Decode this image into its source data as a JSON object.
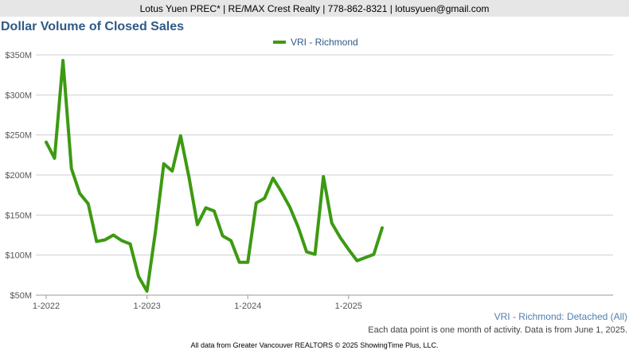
{
  "header": {
    "text": "Lotus Yuen PREC* | RE/MAX Crest Realty | 778-862-8321 | lotusyuen@gmail.com"
  },
  "chart_data": {
    "type": "line",
    "title": "Dollar Volume of Closed Sales",
    "subtitle": "VRI - Richmond: Detached (All)",
    "note": "Each data point is one month of activity. Data is from June 1, 2025.",
    "legend_position": "top-center",
    "grid": true,
    "ylim": [
      50,
      350
    ],
    "y_ticks": [
      50,
      100,
      150,
      200,
      250,
      300,
      350
    ],
    "y_tick_labels": [
      "$50M",
      "$100M",
      "$150M",
      "$200M",
      "$250M",
      "$300M",
      "$350M"
    ],
    "x_tick_labels": [
      {
        "index": 0,
        "label": "1-2022"
      },
      {
        "index": 12,
        "label": "1-2023"
      },
      {
        "index": 24,
        "label": "1-2024"
      },
      {
        "index": 36,
        "label": "1-2025"
      }
    ],
    "series": [
      {
        "name": "VRI - Richmond",
        "color": "#3c9a12",
        "values": [
          241,
          221,
          343,
          208,
          177,
          164,
          117,
          119,
          125,
          118,
          114,
          73,
          55,
          129,
          214,
          205,
          249,
          197,
          138,
          159,
          155,
          124,
          118,
          91,
          91,
          165,
          171,
          196,
          179,
          160,
          135,
          104,
          101,
          198,
          140,
          122,
          107,
          93,
          97,
          101,
          134
        ]
      }
    ]
  },
  "footer": {
    "text": "All data from Greater Vancouver REALTORS © 2025 ShowingTime Plus, LLC."
  }
}
